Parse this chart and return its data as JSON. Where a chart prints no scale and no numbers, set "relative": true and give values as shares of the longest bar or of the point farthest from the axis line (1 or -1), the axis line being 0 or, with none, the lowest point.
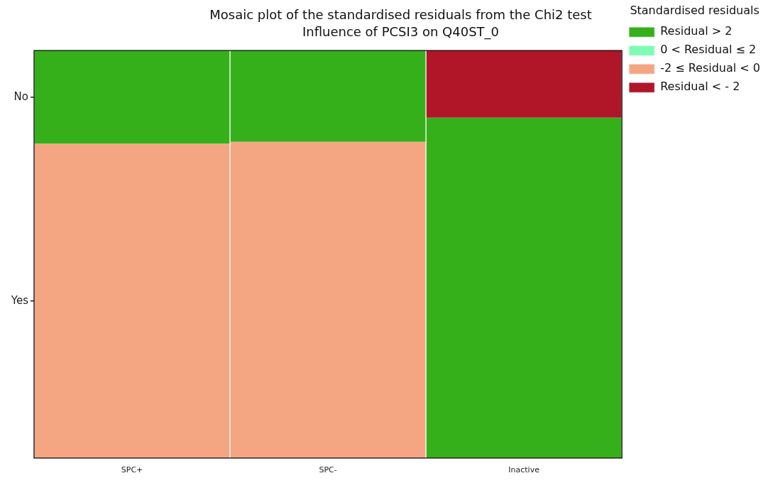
{
  "chart_data": {
    "type": "bar",
    "title": "Mosaic plot of the standardised residuals from the Chi2 test",
    "subtitle": "Influence of PCSI3 on Q40ST_0",
    "categories": [
      "SPC+",
      "SPC-",
      "Inactive"
    ],
    "stacked": true,
    "relative": true,
    "legend": "right",
    "legend_title": "Standardised residuals",
    "series": [
      {
        "name": "Yes",
        "colors": [
          "#f4a683",
          "#f4a683",
          "#36b01a"
        ],
        "values": [
          0.771,
          0.776,
          0.835
        ]
      },
      {
        "name": "No",
        "colors": [
          "#36b01a",
          "#36b01a",
          "#b01528"
        ],
        "values": [
          0.229,
          0.224,
          0.165
        ]
      },
      {
        "name": "Residual > 2",
        "color": "#36b01a",
        "values": [
          null,
          null,
          null
        ]
      },
      {
        "name": "0 < Residual ≤ 2",
        "color": "#7ffcb4",
        "values": [
          null,
          null,
          null
        ]
      },
      {
        "name": "-2 ≤ Residual < 0",
        "color": "#f4a683",
        "values": [
          null,
          null,
          null
        ]
      },
      {
        "name": "Residual < - 2",
        "color": "#b01528",
        "values": [
          null,
          null,
          null
        ]
      }
    ]
  }
}
